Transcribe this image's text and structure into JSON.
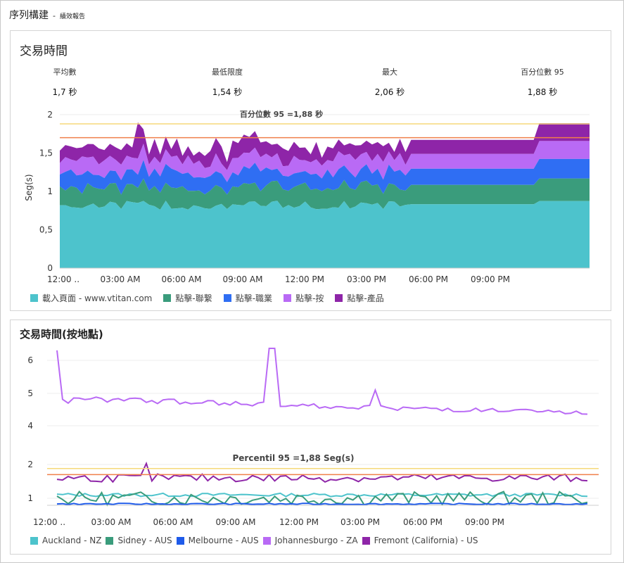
{
  "header": {
    "title": "序列構建",
    "separator": "-",
    "subtitle": "績效報告"
  },
  "panel1": {
    "title": "交易時間",
    "stats": [
      {
        "label": "平均數",
        "value": "1,7 秒"
      },
      {
        "label": "最低限度",
        "value": "1,54 秒"
      },
      {
        "label": "最大",
        "value": "2,06 秒"
      },
      {
        "label": "百分位數 95",
        "value": "1,88 秒"
      }
    ],
    "legend": [
      {
        "label": "載入頁面 - www.vtitan.com",
        "color": "#4dc3cc"
      },
      {
        "label": "點擊-聯繫",
        "color": "#3a9c7c"
      },
      {
        "label": "點擊-職業",
        "color": "#2f6ef3"
      },
      {
        "label": "點擊-按",
        "color": "#b96af5"
      },
      {
        "label": "點擊-產品",
        "color": "#8e25a8"
      }
    ]
  },
  "panel2": {
    "title": "交易時間(按地點)",
    "legend": [
      {
        "label": "Auckland - NZ",
        "color": "#4dc3cc"
      },
      {
        "label": "Sidney - AUS",
        "color": "#3a9c7c"
      },
      {
        "label": "Melbourne - AUS",
        "color": "#1f5bea"
      },
      {
        "label": "Johannesburgo - ZA",
        "color": "#b96af5"
      },
      {
        "label": "Fremont (California) - US",
        "color": "#8e25a8"
      }
    ]
  },
  "chart_data": [
    {
      "type": "area",
      "stacked": true,
      "ylabel": "Seg(s)",
      "ylim": [
        0,
        2.1
      ],
      "yticks": [
        "0",
        "0,5",
        "1",
        "1,5",
        "2"
      ],
      "xticks": [
        "12:00 ..",
        "03:00 AM",
        "06:00 AM",
        "09:00 AM",
        "12:00 PM",
        "03:00 PM",
        "06:00 PM",
        "09:00 PM"
      ],
      "x_points": 96,
      "reference_lines": [
        {
          "value": 1.88,
          "color": "#f5d97a",
          "label": "百分位數 95 =1,88 秒"
        },
        {
          "value": 1.7,
          "color": "#f07f4a"
        }
      ],
      "series": [
        {
          "name": "載入頁面 - www.vtitan.com",
          "color": "#4dc3cc",
          "base": 0.82,
          "amp": 0.06
        },
        {
          "name": "點擊-聯繫",
          "color": "#3a9c7c",
          "base": 0.24,
          "amp": 0.06
        },
        {
          "name": "點擊-職業",
          "color": "#2f6ef3",
          "base": 0.2,
          "amp": 0.06
        },
        {
          "name": "點擊-按",
          "color": "#b96af5",
          "base": 0.18,
          "amp": 0.06
        },
        {
          "name": "點擊-產品",
          "color": "#8e25a8",
          "base": 0.17,
          "amp": 0.07
        }
      ]
    },
    {
      "type": "line",
      "ylim": [
        0.5,
        6.3
      ],
      "yticks": [
        "1",
        "2",
        "4",
        "5",
        "6"
      ],
      "xticks": [
        "12:00 ..",
        "03:00 AM",
        "06:00 AM",
        "09:00 AM",
        "12:00 PM",
        "03:00 PM",
        "06:00 PM",
        "09:00 PM"
      ],
      "x_points": 96,
      "reference_lines": [
        {
          "value": 1.88,
          "color": "#f5d97a",
          "label": "Percentil 95 =1,88 Seg(s)"
        },
        {
          "value": 1.7,
          "color": "#f07f4a"
        }
      ],
      "series": [
        {
          "name": "Auckland - NZ",
          "color": "#4dc3cc",
          "base": 1.1,
          "amp": 0.05
        },
        {
          "name": "Sidney - AUS",
          "color": "#3a9c7c",
          "base": 1.0,
          "amp": 0.2
        },
        {
          "name": "Melbourne - AUS",
          "color": "#1f5bea",
          "base": 0.83,
          "amp": 0.02
        },
        {
          "name": "Johannesburgo - ZA",
          "color": "#b96af5",
          "base": 4.6,
          "amp": 0.15
        },
        {
          "name": "Fremont (California) - US",
          "color": "#8e25a8",
          "base": 1.6,
          "amp": 0.12
        }
      ]
    }
  ]
}
